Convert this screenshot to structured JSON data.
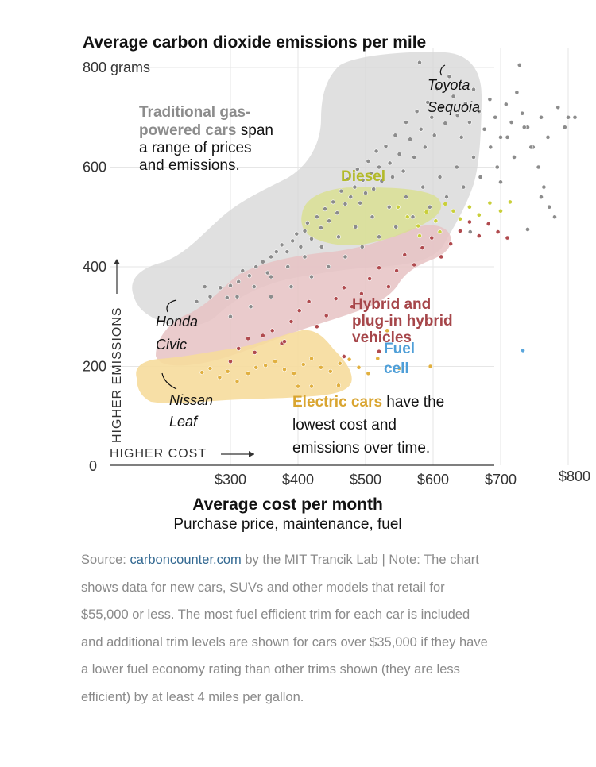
{
  "chart_data": {
    "type": "scatter",
    "title": "Average carbon dioxide emissions per mile",
    "xlabel": "Average cost per month",
    "xsublabel": "Purchase price, maintenance, fuel",
    "ylabel_unit": "grams",
    "x_axis_caption": "HIGHER COST",
    "y_axis_caption": "HIGHER EMISSIONS",
    "xlim": [
      230,
      820
    ],
    "ylim": [
      0,
      820
    ],
    "x_ticks": [
      "$300",
      "$400",
      "$500",
      "$600",
      "$700",
      "$800"
    ],
    "x_tick_values": [
      300,
      400,
      500,
      600,
      700,
      800
    ],
    "y_ticks": [
      "800 grams",
      "600",
      "400",
      "200",
      "0"
    ],
    "y_tick_values": [
      800,
      600,
      400,
      200,
      0
    ],
    "series": [
      {
        "name": "Traditional gas-powered cars",
        "color": "#8c8c8c",
        "region_color": "#d6d6d6",
        "points": [
          [
            250,
            330
          ],
          [
            262,
            360
          ],
          [
            270,
            340
          ],
          [
            285,
            358
          ],
          [
            295,
            338
          ],
          [
            300,
            362
          ],
          [
            312,
            370
          ],
          [
            318,
            392
          ],
          [
            328,
            382
          ],
          [
            338,
            400
          ],
          [
            348,
            410
          ],
          [
            355,
            388
          ],
          [
            360,
            420
          ],
          [
            368,
            430
          ],
          [
            376,
            444
          ],
          [
            384,
            430
          ],
          [
            392,
            452
          ],
          [
            398,
            466
          ],
          [
            404,
            440
          ],
          [
            410,
            472
          ],
          [
            414,
            488
          ],
          [
            420,
            456
          ],
          [
            428,
            500
          ],
          [
            434,
            478
          ],
          [
            440,
            516
          ],
          [
            446,
            492
          ],
          [
            452,
            530
          ],
          [
            458,
            508
          ],
          [
            464,
            552
          ],
          [
            470,
            526
          ],
          [
            474,
            576
          ],
          [
            478,
            540
          ],
          [
            484,
            560
          ],
          [
            488,
            596
          ],
          [
            492,
            528
          ],
          [
            496,
            574
          ],
          [
            500,
            548
          ],
          [
            504,
            612
          ],
          [
            508,
            588
          ],
          [
            512,
            556
          ],
          [
            516,
            632
          ],
          [
            520,
            600
          ],
          [
            524,
            572
          ],
          [
            530,
            642
          ],
          [
            536,
            608
          ],
          [
            540,
            580
          ],
          [
            544,
            664
          ],
          [
            550,
            626
          ],
          [
            556,
            592
          ],
          [
            560,
            690
          ],
          [
            566,
            656
          ],
          [
            572,
            620
          ],
          [
            576,
            712
          ],
          [
            582,
            676
          ],
          [
            588,
            640
          ],
          [
            592,
            730
          ],
          [
            598,
            700
          ],
          [
            602,
            664
          ],
          [
            606,
            758
          ],
          [
            612,
            720
          ],
          [
            618,
            688
          ],
          [
            624,
            782
          ],
          [
            630,
            742
          ],
          [
            636,
            704
          ],
          [
            642,
            660
          ],
          [
            648,
            728
          ],
          [
            654,
            690
          ],
          [
            660,
            756
          ],
          [
            668,
            712
          ],
          [
            676,
            676
          ],
          [
            684,
            736
          ],
          [
            692,
            700
          ],
          [
            700,
            660
          ],
          [
            708,
            726
          ],
          [
            716,
            690
          ],
          [
            724,
            750
          ],
          [
            732,
            708
          ],
          [
            740,
            680
          ],
          [
            748,
            640
          ],
          [
            756,
            600
          ],
          [
            764,
            560
          ],
          [
            772,
            520
          ],
          [
            780,
            500
          ],
          [
            300,
            300
          ],
          [
            330,
            320
          ],
          [
            360,
            340
          ],
          [
            390,
            360
          ],
          [
            420,
            380
          ],
          [
            445,
            400
          ],
          [
            470,
            420
          ],
          [
            495,
            440
          ],
          [
            520,
            460
          ],
          [
            545,
            480
          ],
          [
            570,
            500
          ],
          [
            595,
            520
          ],
          [
            620,
            540
          ],
          [
            645,
            560
          ],
          [
            670,
            580
          ],
          [
            695,
            600
          ],
          [
            720,
            620
          ],
          [
            745,
            640
          ],
          [
            770,
            660
          ],
          [
            795,
            680
          ],
          [
            810,
            700
          ],
          [
            785,
            720
          ],
          [
            760,
            700
          ],
          [
            735,
            680
          ],
          [
            710,
            660
          ],
          [
            685,
            640
          ],
          [
            660,
            620
          ],
          [
            635,
            600
          ],
          [
            610,
            580
          ],
          [
            585,
            560
          ],
          [
            560,
            540
          ],
          [
            535,
            520
          ],
          [
            510,
            500
          ],
          [
            485,
            480
          ],
          [
            460,
            460
          ],
          [
            435,
            440
          ],
          [
            410,
            420
          ],
          [
            385,
            400
          ],
          [
            360,
            380
          ],
          [
            335,
            360
          ],
          [
            310,
            340
          ],
          [
            728,
            805
          ],
          [
            580,
            810
          ],
          [
            700,
            570
          ],
          [
            655,
            470
          ],
          [
            800,
            700
          ],
          [
            760,
            540
          ],
          [
            740,
            475
          ]
        ]
      },
      {
        "name": "Diesel",
        "color": "#c9cf3a",
        "region_color": "#d9e08e",
        "points": [
          [
            548,
            520
          ],
          [
            562,
            500
          ],
          [
            578,
            482
          ],
          [
            590,
            510
          ],
          [
            604,
            492
          ],
          [
            618,
            526
          ],
          [
            630,
            512
          ],
          [
            640,
            496
          ],
          [
            654,
            520
          ],
          [
            668,
            504
          ],
          [
            684,
            528
          ],
          [
            700,
            512
          ],
          [
            714,
            530
          ],
          [
            610,
            470
          ],
          [
            580,
            462
          ]
        ]
      },
      {
        "name": "Hybrid and plug-in hybrid vehicles",
        "color": "#b04a4e",
        "region_color": "#e6c2c3",
        "points": [
          [
            300,
            210
          ],
          [
            312,
            236
          ],
          [
            326,
            256
          ],
          [
            336,
            228
          ],
          [
            348,
            262
          ],
          [
            362,
            272
          ],
          [
            376,
            246
          ],
          [
            390,
            290
          ],
          [
            402,
            312
          ],
          [
            416,
            330
          ],
          [
            428,
            280
          ],
          [
            442,
            302
          ],
          [
            456,
            336
          ],
          [
            468,
            358
          ],
          [
            480,
            320
          ],
          [
            494,
            346
          ],
          [
            506,
            376
          ],
          [
            520,
            398
          ],
          [
            534,
            360
          ],
          [
            546,
            392
          ],
          [
            558,
            424
          ],
          [
            572,
            404
          ],
          [
            584,
            438
          ],
          [
            598,
            458
          ],
          [
            612,
            420
          ],
          [
            626,
            446
          ],
          [
            640,
            472
          ],
          [
            654,
            490
          ],
          [
            668,
            462
          ],
          [
            682,
            486
          ],
          [
            696,
            470
          ],
          [
            710,
            458
          ],
          [
            520,
            230
          ],
          [
            468,
            220
          ],
          [
            380,
            250
          ]
        ]
      },
      {
        "name": "Electric cars",
        "color": "#e1b040",
        "region_color": "#f6dc9c",
        "points": [
          [
            258,
            188
          ],
          [
            270,
            196
          ],
          [
            284,
            178
          ],
          [
            296,
            190
          ],
          [
            310,
            170
          ],
          [
            326,
            186
          ],
          [
            338,
            198
          ],
          [
            352,
            202
          ],
          [
            366,
            210
          ],
          [
            380,
            194
          ],
          [
            394,
            186
          ],
          [
            408,
            204
          ],
          [
            420,
            216
          ],
          [
            434,
            198
          ],
          [
            448,
            190
          ],
          [
            462,
            206
          ],
          [
            476,
            214
          ],
          [
            490,
            198
          ],
          [
            504,
            186
          ],
          [
            518,
            216
          ],
          [
            532,
            272
          ],
          [
            400,
            160
          ],
          [
            420,
            160
          ],
          [
            460,
            162
          ],
          [
            550,
            196
          ],
          [
            596,
            200
          ]
        ]
      },
      {
        "name": "Fuel cell",
        "color": "#5aa6dc",
        "points": [
          [
            733,
            232
          ]
        ]
      }
    ],
    "annotations": {
      "gas_lines": [
        "Traditional gas-",
        "powered cars span",
        "a range of prices",
        "and emissions."
      ],
      "gas_bold_1": "Traditional gas-",
      "gas_bold_2": "powered cars",
      "gas_rest_2": " span",
      "gas_line_3": "a range of prices",
      "gas_line_4": "and emissions.",
      "diesel": "Diesel",
      "hybrid_1": "Hybrid and",
      "hybrid_2": "plug-in hybrid",
      "hybrid_3": "vehicles",
      "fuel_1": "Fuel",
      "fuel_2": "cell",
      "ev_bold": "Electric cars",
      "ev_rest_1": " have the",
      "ev_line_2": "lowest cost and",
      "ev_line_3": "emissions over time.",
      "toyota_1": "Toyota",
      "toyota_2": "Sequoia",
      "honda_1": "Honda",
      "honda_2": "Civic",
      "nissan_1": "Nissan",
      "nissan_2": "Leaf"
    }
  },
  "source": {
    "prefix": "Source: ",
    "link_text": "carboncounter.com",
    "suffix": " by the MIT Trancik Lab | Note: The chart shows data for new cars, SUVs and other models that retail for $55,000 or less. The most fuel efficient trim for each car is included and additional trim levels are shown for cars over $35,000 if they have a lower fuel economy rating than other trims shown (they are less efficient) by at least 4 miles per gallon."
  },
  "colors": {
    "gas_text": "#8c8c8c",
    "diesel_text": "#b3ba2a",
    "hybrid_text": "#a6464a",
    "fuel_text": "#4f9fd8",
    "ev_text": "#d9a531"
  }
}
